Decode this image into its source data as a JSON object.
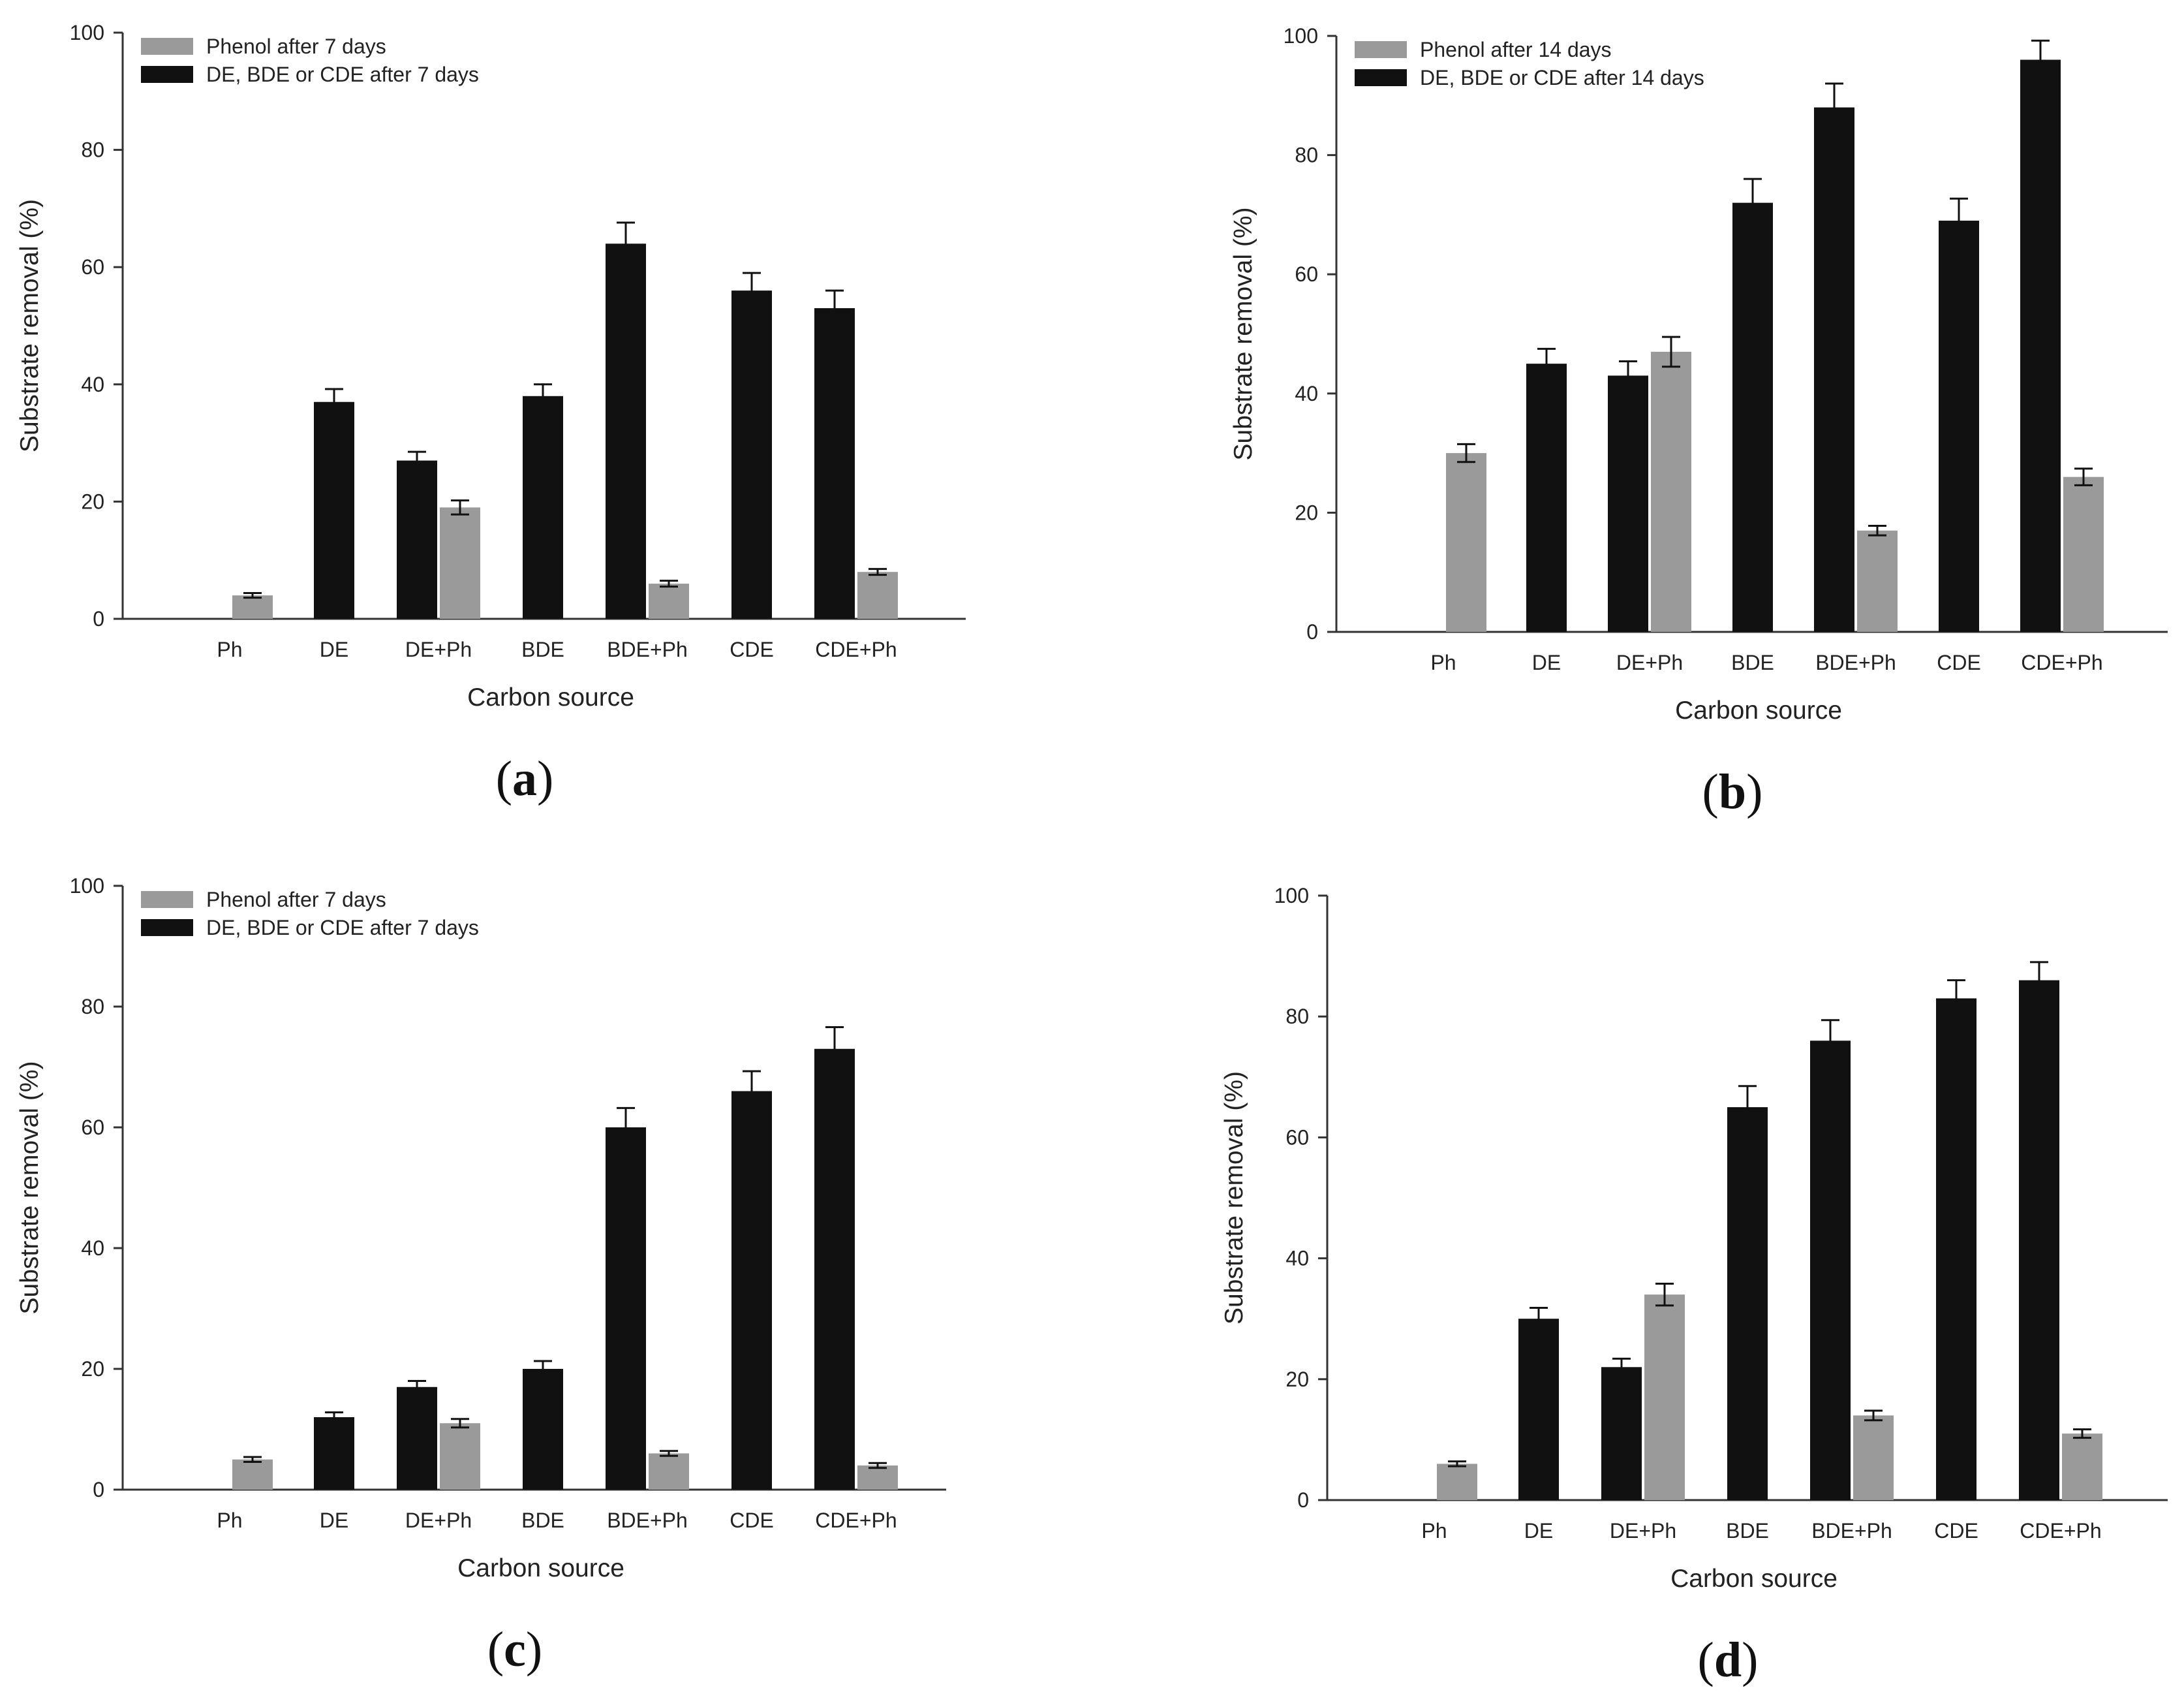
{
  "figure": {
    "panels_count": 4
  },
  "chart_data": [
    {
      "type": "bar",
      "panel_label_prefix": "(",
      "panel_label_letter": "a",
      "panel_label_suffix": ")",
      "xlabel": "Carbon source",
      "ylabel": "Substrate removal (%)",
      "ylim": [
        0,
        100
      ],
      "yticks": [
        0,
        20,
        40,
        60,
        80,
        100
      ],
      "categories": [
        "Ph",
        "DE",
        "DE+Ph",
        "BDE",
        "BDE+Ph",
        "CDE",
        "CDE+Ph"
      ],
      "legend": {
        "placement": "top-left"
      },
      "colors": {
        "phenol": "#9a9a9a",
        "compound": "#111111",
        "axis": "#333333"
      },
      "series": [
        {
          "name": "Phenol after 7 days",
          "key": "phenol",
          "values": [
            4,
            null,
            19,
            null,
            6,
            null,
            8
          ],
          "errors": [
            0.4,
            null,
            1.2,
            null,
            0.5,
            null,
            0.5
          ]
        },
        {
          "name": "DE, BDE or CDE after 7 days",
          "key": "compound",
          "values": [
            null,
            37,
            27,
            38,
            64,
            56,
            53
          ],
          "errors": [
            null,
            2.2,
            1.5,
            2.0,
            3.6,
            3.0,
            3.0
          ]
        }
      ]
    },
    {
      "type": "bar",
      "panel_label_prefix": "(",
      "panel_label_letter": "b",
      "panel_label_suffix": ")",
      "xlabel": "Carbon source",
      "ylabel": "Substrate removal (%)",
      "ylim": [
        0,
        100
      ],
      "yticks": [
        0,
        20,
        40,
        60,
        80,
        100
      ],
      "categories": [
        "Ph",
        "DE",
        "DE+Ph",
        "BDE",
        "BDE+Ph",
        "CDE",
        "CDE+Ph"
      ],
      "legend": {
        "placement": "top-left"
      },
      "colors": {
        "phenol": "#9a9a9a",
        "compound": "#111111",
        "axis": "#333333"
      },
      "series": [
        {
          "name": "Phenol after 14 days",
          "key": "phenol",
          "values": [
            30,
            null,
            47,
            null,
            17,
            null,
            26
          ],
          "errors": [
            1.5,
            null,
            2.5,
            null,
            0.8,
            null,
            1.4
          ]
        },
        {
          "name": "DE, BDE or CDE after 14 days",
          "key": "compound",
          "values": [
            null,
            45,
            43,
            72,
            88,
            69,
            96
          ],
          "errors": [
            null,
            2.5,
            2.4,
            4.0,
            4.0,
            3.7,
            3.2
          ]
        }
      ]
    },
    {
      "type": "bar",
      "panel_label_prefix": "(",
      "panel_label_letter": "c",
      "panel_label_suffix": ")",
      "xlabel": "Carbon source",
      "ylabel": "Substrate removal (%)",
      "ylim": [
        0,
        100
      ],
      "yticks": [
        0,
        20,
        40,
        60,
        80,
        100
      ],
      "categories": [
        "Ph",
        "DE",
        "DE+Ph",
        "BDE",
        "BDE+Ph",
        "CDE",
        "CDE+Ph"
      ],
      "legend": {
        "placement": "top-left"
      },
      "colors": {
        "phenol": "#9a9a9a",
        "compound": "#111111",
        "axis": "#333333"
      },
      "series": [
        {
          "name": "Phenol after 7 days",
          "key": "phenol",
          "values": [
            5,
            null,
            11,
            null,
            6,
            null,
            4
          ],
          "errors": [
            0.4,
            null,
            0.7,
            null,
            0.4,
            null,
            0.4
          ]
        },
        {
          "name": "DE, BDE or CDE after 7 days",
          "key": "compound",
          "values": [
            null,
            12,
            17,
            20,
            60,
            66,
            73
          ],
          "errors": [
            null,
            0.8,
            1.0,
            1.3,
            3.2,
            3.3,
            3.6
          ]
        }
      ]
    },
    {
      "type": "bar",
      "panel_label_prefix": "(",
      "panel_label_letter": "d",
      "panel_label_suffix": ")",
      "xlabel": "Carbon source",
      "ylabel": "Substrate removal (%)",
      "ylim": [
        0,
        100
      ],
      "yticks": [
        0,
        20,
        40,
        60,
        80,
        100
      ],
      "categories": [
        "Ph",
        "DE",
        "DE+Ph",
        "BDE",
        "BDE+Ph",
        "CDE",
        "CDE+Ph"
      ],
      "legend": {
        "placement": "none"
      },
      "colors": {
        "phenol": "#9a9a9a",
        "compound": "#111111",
        "axis": "#333333"
      },
      "series": [
        {
          "name": "",
          "key": "phenol",
          "values": [
            6,
            null,
            34,
            null,
            14,
            null,
            11
          ],
          "errors": [
            0.4,
            null,
            1.8,
            null,
            0.8,
            null,
            0.7
          ]
        },
        {
          "name": "",
          "key": "compound",
          "values": [
            null,
            30,
            22,
            65,
            76,
            83,
            86
          ],
          "errors": [
            null,
            1.8,
            1.4,
            3.5,
            3.4,
            3.0,
            3.0
          ]
        }
      ]
    }
  ]
}
